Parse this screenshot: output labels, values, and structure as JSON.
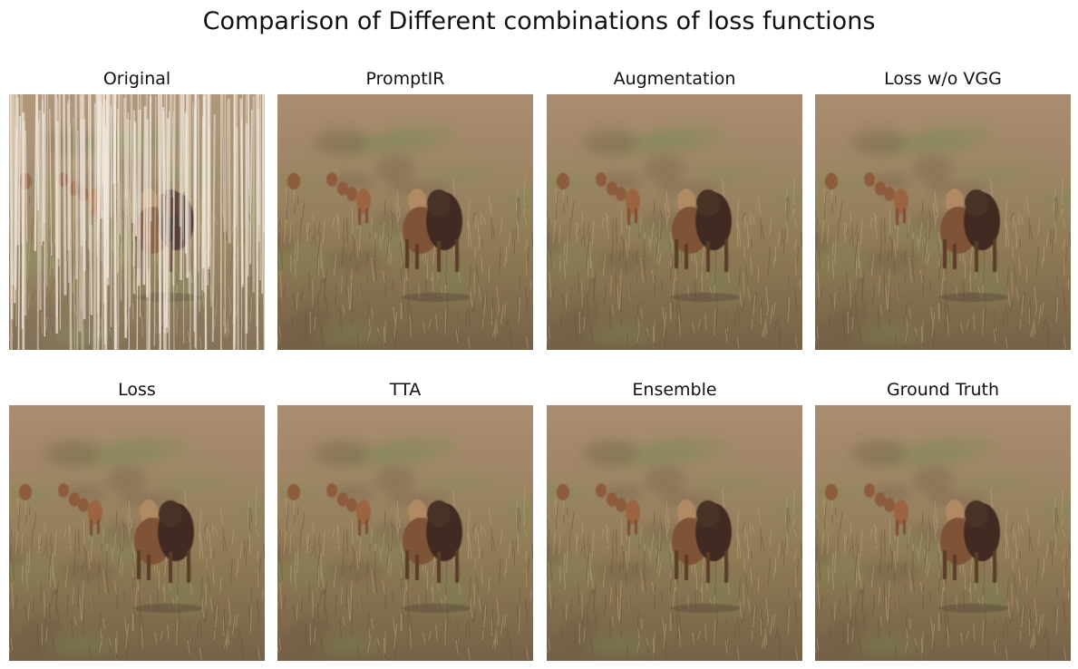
{
  "figure": {
    "title": "Comparison of Different combinations of loss functions"
  },
  "panels": [
    {
      "label": "Original",
      "rain_streaks": true
    },
    {
      "label": "PromptIR",
      "rain_streaks": false
    },
    {
      "label": "Augmentation",
      "rain_streaks": false
    },
    {
      "label": "Loss w/o VGG",
      "rain_streaks": false
    },
    {
      "label": "Loss",
      "rain_streaks": false
    },
    {
      "label": "TTA",
      "rain_streaks": false
    },
    {
      "label": "Ensemble",
      "rain_streaks": false
    },
    {
      "label": "Ground Truth",
      "rain_streaks": false
    }
  ],
  "palette": {
    "grass_light": "#a88a6a",
    "grass_dark": "#6f5c44",
    "grass_green": "#7a8a56",
    "lion_fur": "#8a5a3a",
    "lion_dark": "#3f2c24",
    "rain": "#f3eadf"
  }
}
